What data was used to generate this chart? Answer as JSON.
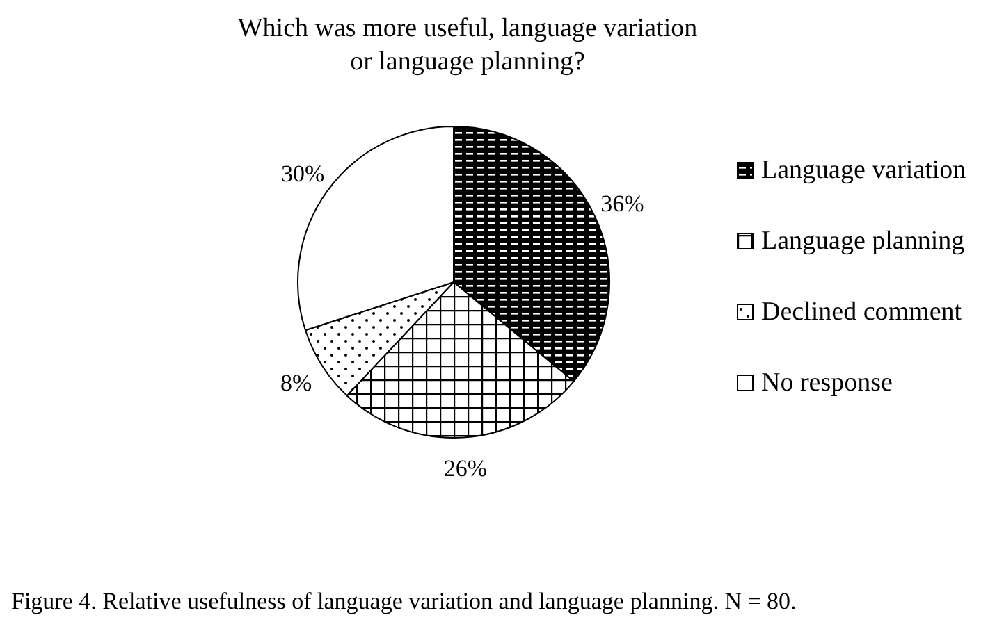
{
  "chart_data": {
    "type": "pie",
    "title": "Which was more useful, language variation or language planning?",
    "categories": [
      "Language variation",
      "Language planning",
      "Declined comment",
      "No response"
    ],
    "values": [
      36,
      26,
      8,
      30
    ],
    "colors": [
      "#000000",
      "#000000",
      "#000000",
      "#ffffff"
    ],
    "value_labels": [
      "36%",
      "26%",
      "8%",
      "30%"
    ],
    "legend": "right",
    "annotations": [
      "Figure 4. Relative usefulness of language variation and language planning. N = 80."
    ]
  }
}
